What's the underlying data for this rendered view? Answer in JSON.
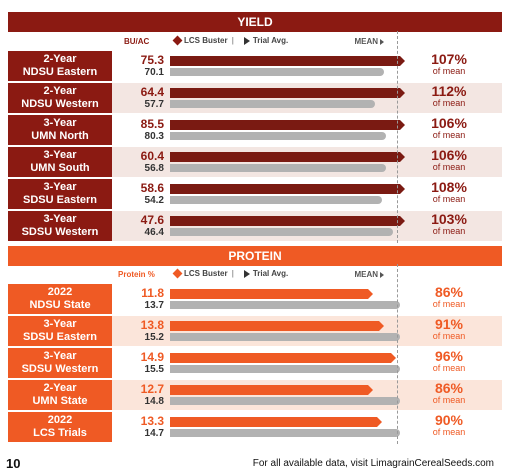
{
  "yield_section": {
    "title": "YIELD",
    "unit": "BU/AC",
    "legend_lcs": "LCS Buster",
    "legend_trial": "Trial Avg.",
    "mean_label": "MEAN",
    "colors": {
      "header": "#8b1a12",
      "label_bg": "#8b1a12",
      "bar": "#7a1a12",
      "alt_row": "#f3e6e2",
      "text": "#8b1a12"
    },
    "rows": [
      {
        "label1": "2-Year",
        "label2": "NDSU Eastern",
        "lcs": "75.3",
        "trial": "70.1",
        "pct": "107%",
        "pct_sub": "of mean",
        "lcs_fill": 1.0,
        "trial_fill": 0.93
      },
      {
        "label1": "2-Year",
        "label2": "NDSU Western",
        "lcs": "64.4",
        "trial": "57.7",
        "pct": "112%",
        "pct_sub": "of mean",
        "lcs_fill": 1.0,
        "trial_fill": 0.89
      },
      {
        "label1": "3-Year",
        "label2": "UMN North",
        "lcs": "85.5",
        "trial": "80.3",
        "pct": "106%",
        "pct_sub": "of mean",
        "lcs_fill": 1.0,
        "trial_fill": 0.94
      },
      {
        "label1": "3-Year",
        "label2": "UMN South",
        "lcs": "60.4",
        "trial": "56.8",
        "pct": "106%",
        "pct_sub": "of mean",
        "lcs_fill": 1.0,
        "trial_fill": 0.94
      },
      {
        "label1": "3-Year",
        "label2": "SDSU Eastern",
        "lcs": "58.6",
        "trial": "54.2",
        "pct": "108%",
        "pct_sub": "of mean",
        "lcs_fill": 1.0,
        "trial_fill": 0.92
      },
      {
        "label1": "3-Year",
        "label2": "SDSU Western",
        "lcs": "47.6",
        "trial": "46.4",
        "pct": "103%",
        "pct_sub": "of mean",
        "lcs_fill": 1.0,
        "trial_fill": 0.97
      }
    ]
  },
  "protein_section": {
    "title": "PROTEIN",
    "unit": "Protein %",
    "legend_lcs": "LCS Buster",
    "legend_trial": "Trial Avg.",
    "mean_label": "MEAN",
    "colors": {
      "header": "#ef5a24",
      "label_bg": "#ef5a24",
      "bar": "#ef5a24",
      "alt_row": "#fbe5da",
      "text": "#ef5a24"
    },
    "rows": [
      {
        "label1": "2022",
        "label2": "NDSU State",
        "lcs": "11.8",
        "trial": "13.7",
        "pct": "86%",
        "pct_sub": "of mean",
        "lcs_fill": 0.86,
        "trial_fill": 1.0
      },
      {
        "label1": "3-Year",
        "label2": "SDSU Eastern",
        "lcs": "13.8",
        "trial": "15.2",
        "pct": "91%",
        "pct_sub": "of mean",
        "lcs_fill": 0.91,
        "trial_fill": 1.0
      },
      {
        "label1": "3-Year",
        "label2": "SDSU Western",
        "lcs": "14.9",
        "trial": "15.5",
        "pct": "96%",
        "pct_sub": "of mean",
        "lcs_fill": 0.96,
        "trial_fill": 1.0
      },
      {
        "label1": "2-Year",
        "label2": "UMN State",
        "lcs": "12.7",
        "trial": "14.8",
        "pct": "86%",
        "pct_sub": "of mean",
        "lcs_fill": 0.86,
        "trial_fill": 1.0
      },
      {
        "label1": "2022",
        "label2": "LCS Trials",
        "lcs": "13.3",
        "trial": "14.7",
        "pct": "90%",
        "pct_sub": "of mean",
        "lcs_fill": 0.9,
        "trial_fill": 1.0
      }
    ]
  },
  "footer": {
    "page_number": "10",
    "text": "For all available data, visit LimagrainCerealSeeds.com"
  }
}
